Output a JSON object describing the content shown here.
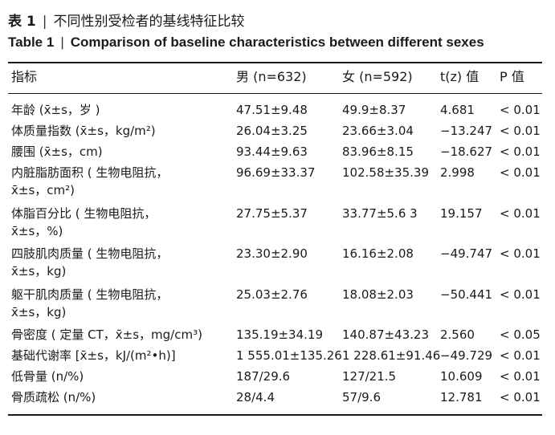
{
  "caption": {
    "cn_label": "表 1",
    "separator": "|",
    "cn_title": "不同性别受检者的基线特征比较",
    "en_label": "Table 1",
    "en_title": "Comparison of baseline characteristics between different sexes"
  },
  "table": {
    "headers": [
      "指标",
      "男 (n=632)",
      "女 (n=592)",
      "t(z) 值",
      "P 值"
    ],
    "rows": [
      {
        "label": [
          "年龄 (x̄±s，岁 )"
        ],
        "male": "47.51±9.48",
        "female": "49.9±8.37",
        "t": "4.681",
        "p": "< 0.01"
      },
      {
        "label": [
          "体质量指数 (x̄±s，kg/m²)"
        ],
        "male": "26.04±3.25",
        "female": "23.66±3.04",
        "t": "−13.247",
        "p": "< 0.01"
      },
      {
        "label": [
          "腰围 (x̄±s，cm)"
        ],
        "male": "93.44±9.63",
        "female": "83.96±8.15",
        "t": "−18.627",
        "p": "< 0.01"
      },
      {
        "label": [
          "内脏脂肪面积 ( 生物电阻抗，",
          "x̄±s，cm²)"
        ],
        "male": "96.69±33.37",
        "female": "102.58±35.39",
        "t": "2.998",
        "p": "< 0.01"
      },
      {
        "label": [
          "体脂百分比 ( 生物电阻抗，",
          "x̄±s，%)"
        ],
        "male": "27.75±5.37",
        "female": "33.77±5.6 3",
        "t": "19.157",
        "p": "< 0.01"
      },
      {
        "label": [
          "四肢肌肉质量 ( 生物电阻抗，",
          "x̄±s，kg)"
        ],
        "male": "23.30±2.90",
        "female": "16.16±2.08",
        "t": "−49.747",
        "p": "< 0.01"
      },
      {
        "label": [
          "躯干肌肉质量 ( 生物电阻抗，",
          "x̄±s，kg)"
        ],
        "male": "25.03±2.76",
        "female": "18.08±2.03",
        "t": "−50.441",
        "p": "< 0.01"
      },
      {
        "label": [
          "骨密度 ( 定量 CT，x̄±s，mg/cm³)"
        ],
        "male": "135.19±34.19",
        "female": "140.87±43.23",
        "t": "2.560",
        "p": "< 0.05"
      },
      {
        "label": [
          "基础代谢率 [x̄±s，kJ/(m²•h)]"
        ],
        "male": "1 555.01±135.26",
        "female": "1 228.61±91.46",
        "t": "−49.729",
        "p": "< 0.01"
      },
      {
        "label": [
          "低骨量 (n/%)"
        ],
        "male": "187/29.6",
        "female": "127/21.5",
        "t": "10.609",
        "p": "< 0.01"
      },
      {
        "label": [
          "骨质疏松 (n/%)"
        ],
        "male": "28/4.4",
        "female": "57/9.6",
        "t": "12.781",
        "p": "< 0.01"
      }
    ]
  }
}
